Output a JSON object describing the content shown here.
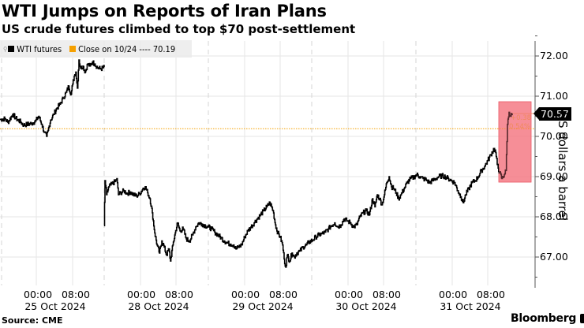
{
  "header": {
    "title": "WTI Jumps on Reports of Iran Plans",
    "subtitle": "US crude futures climbed to top $70 post-settlement"
  },
  "legend": {
    "items": [
      {
        "label": "WTI futures",
        "color": "#000000"
      },
      {
        "label": "Close on 10/24 ---- 70.19",
        "color": "#f5a000"
      }
    ]
  },
  "y_axis": {
    "title": "US dollars a barrel",
    "ticks": [
      "72.00",
      "71.00",
      "70.00",
      "69.00",
      "68.00",
      "67.00"
    ],
    "last_value": "70.57"
  },
  "x_axis": {
    "groups": [
      {
        "times": "00:00   08:00",
        "date": "25 Oct 2024"
      },
      {
        "times": "00:00   08:00",
        "date": "28 Oct 2024"
      },
      {
        "times": "00:00   08:00",
        "date": "29 Oct 2024"
      },
      {
        "times": "00:00   08:00",
        "date": "30 Oct 2024"
      },
      {
        "times": "00:00   08:00",
        "date": "31 Oct 2024"
      }
    ]
  },
  "annotation": {
    "change": "+0.38",
    "pct": "0.54%",
    "box_color": "#f4747f"
  },
  "footer": {
    "source": "Source: CME",
    "brand": "Bloomberg"
  },
  "colors": {
    "series": "#000000",
    "reference": "#f5a000",
    "highlight": "#f4747f",
    "grid": "#e6e6e6"
  },
  "chart_data": {
    "type": "line",
    "title": "WTI Jumps on Reports of Iran Plans",
    "subtitle": "US crude futures climbed to top $70 post-settlement",
    "xlabel": "",
    "ylabel": "US dollars a barrel",
    "ylim": [
      66.2,
      72.3
    ],
    "grid": true,
    "legend_position": "top-left",
    "reference_line": {
      "label": "Close on 10/24",
      "value": 70.19
    },
    "last_value": 70.57,
    "change": 0.38,
    "change_pct": 0.54,
    "x_tick_labels": [
      "00:00",
      "08:00",
      "25 Oct 2024",
      "28 Oct 2024",
      "29 Oct 2024",
      "30 Oct 2024",
      "31 Oct 2024"
    ],
    "series": [
      {
        "name": "WTI futures",
        "segments": [
          [
            [
              0,
              70.42
            ],
            [
              6,
              70.44
            ],
            [
              10,
              70.35
            ],
            [
              16,
              70.55
            ],
            [
              20,
              70.45
            ],
            [
              26,
              70.36
            ],
            [
              30,
              70.28
            ],
            [
              34,
              70.3
            ],
            [
              40,
              70.32
            ],
            [
              45,
              70.38
            ],
            [
              49,
              70.5
            ],
            [
              53,
              70.3
            ],
            [
              56,
              70.1
            ],
            [
              59,
              70.0
            ],
            [
              61,
              70.15
            ],
            [
              64,
              70.4
            ],
            [
              68,
              70.55
            ],
            [
              72,
              70.7
            ],
            [
              76,
              70.8
            ],
            [
              80,
              70.95
            ],
            [
              84,
              71.1
            ],
            [
              87,
              71.25
            ],
            [
              90,
              71.05
            ],
            [
              92,
              71.3
            ],
            [
              94,
              71.5
            ],
            [
              96,
              71.6
            ],
            [
              98,
              71.2
            ],
            [
              100,
              71.9
            ],
            [
              102,
              71.7
            ],
            [
              105,
              71.75
            ],
            [
              108,
              71.6
            ],
            [
              111,
              71.8
            ],
            [
              114,
              71.75
            ],
            [
              117,
              71.85
            ],
            [
              120,
              71.8
            ],
            [
              124,
              71.7
            ],
            [
              128,
              71.68
            ],
            [
              132,
              71.72
            ]
          ],
          [
            [
              132,
              67.78
            ],
            [
              133,
              68.9
            ],
            [
              135,
              68.55
            ],
            [
              138,
              68.75
            ],
            [
              142,
              68.82
            ],
            [
              146,
              68.88
            ],
            [
              148,
              68.95
            ],
            [
              150,
              68.55
            ],
            [
              153,
              68.6
            ],
            [
              157,
              68.65
            ],
            [
              161,
              68.58
            ],
            [
              165,
              68.62
            ],
            [
              169,
              68.55
            ],
            [
              173,
              68.52
            ],
            [
              177,
              68.58
            ],
            [
              181,
              68.7
            ],
            [
              184,
              68.75
            ],
            [
              187,
              68.6
            ],
            [
              190,
              68.45
            ],
            [
              193,
              68.1
            ],
            [
              196,
              67.6
            ],
            [
              199,
              67.3
            ],
            [
              202,
              67.1
            ],
            [
              205,
              67.4
            ],
            [
              208,
              67.25
            ],
            [
              211,
              67.05
            ],
            [
              214,
              67.2
            ],
            [
              216,
              66.9
            ],
            [
              219,
              67.3
            ],
            [
              222,
              67.6
            ],
            [
              225,
              67.85
            ],
            [
              228,
              67.65
            ],
            [
              232,
              67.7
            ],
            [
              236,
              67.45
            ],
            [
              240,
              67.4
            ],
            [
              244,
              67.55
            ],
            [
              248,
              67.75
            ],
            [
              252,
              67.85
            ],
            [
              256,
              67.82
            ],
            [
              260,
              67.78
            ],
            [
              264,
              67.75
            ],
            [
              268,
              67.7
            ],
            [
              272,
              67.62
            ],
            [
              276,
              67.55
            ],
            [
              280,
              67.48
            ],
            [
              284,
              67.4
            ],
            [
              288,
              67.35
            ],
            [
              292,
              67.32
            ],
            [
              296,
              67.3
            ],
            [
              299,
              67.2
            ],
            [
              302,
              67.25
            ],
            [
              306,
              67.3
            ],
            [
              310,
              67.5
            ],
            [
              314,
              67.65
            ],
            [
              318,
              67.75
            ],
            [
              322,
              67.85
            ],
            [
              326,
              67.95
            ],
            [
              330,
              68.05
            ],
            [
              334,
              68.15
            ],
            [
              338,
              68.25
            ],
            [
              342,
              68.35
            ],
            [
              346,
              68.15
            ],
            [
              349,
              67.8
            ],
            [
              352,
              67.6
            ],
            [
              355,
              67.5
            ],
            [
              358,
              67.3
            ],
            [
              360,
              66.95
            ],
            [
              362,
              66.75
            ],
            [
              364,
              67.05
            ],
            [
              367,
              66.9
            ],
            [
              370,
              67.1
            ],
            [
              373,
              67.0
            ],
            [
              376,
              67.1
            ],
            [
              380,
              67.15
            ],
            [
              384,
              67.25
            ],
            [
              388,
              67.3
            ],
            [
              392,
              67.38
            ],
            [
              396,
              67.42
            ],
            [
              400,
              67.5
            ],
            [
              404,
              67.55
            ],
            [
              408,
              67.58
            ],
            [
              412,
              67.62
            ],
            [
              416,
              67.7
            ],
            [
              420,
              67.78
            ],
            [
              424,
              67.85
            ],
            [
              428,
              67.75
            ],
            [
              432,
              67.8
            ],
            [
              436,
              67.95
            ],
            [
              440,
              67.9
            ],
            [
              444,
              67.85
            ],
            [
              448,
              67.75
            ],
            [
              452,
              67.8
            ],
            [
              456,
              68.0
            ],
            [
              460,
              68.1
            ],
            [
              464,
              68.15
            ],
            [
              468,
              68.05
            ],
            [
              472,
              68.45
            ],
            [
              475,
              68.25
            ],
            [
              478,
              68.55
            ],
            [
              481,
              68.45
            ],
            [
              484,
              68.3
            ],
            [
              487,
              68.55
            ],
            [
              490,
              68.85
            ],
            [
              493,
              69.0
            ],
            [
              496,
              68.75
            ],
            [
              499,
              68.7
            ],
            [
              502,
              68.6
            ],
            [
              505,
              68.45
            ],
            [
              508,
              68.55
            ],
            [
              512,
              68.7
            ],
            [
              516,
              68.85
            ],
            [
              520,
              68.95
            ],
            [
              524,
              68.98
            ],
            [
              528,
              69.05
            ],
            [
              532,
              69.0
            ],
            [
              536,
              68.95
            ],
            [
              540,
              68.92
            ],
            [
              544,
              68.85
            ],
            [
              548,
              68.9
            ],
            [
              552,
              68.95
            ],
            [
              556,
              69.0
            ],
            [
              560,
              69.02
            ],
            [
              564,
              69.0
            ],
            [
              568,
              68.95
            ],
            [
              572,
              68.9
            ],
            [
              576,
              68.85
            ],
            [
              580,
              68.65
            ],
            [
              584,
              68.5
            ],
            [
              587,
              68.35
            ],
            [
              590,
              68.55
            ],
            [
              594,
              68.7
            ],
            [
              598,
              68.85
            ],
            [
              602,
              68.9
            ],
            [
              606,
              69.0
            ],
            [
              610,
              69.15
            ],
            [
              614,
              69.25
            ],
            [
              618,
              69.4
            ],
            [
              622,
              69.55
            ],
            [
              626,
              69.7
            ],
            [
              628,
              69.6
            ],
            [
              630,
              69.3
            ],
            [
              633,
              69.1
            ],
            [
              636,
              68.95
            ],
            [
              639,
              69.05
            ],
            [
              641,
              69.15
            ],
            [
              643,
              70.3
            ],
            [
              645,
              70.6
            ],
            [
              647,
              70.5
            ],
            [
              649,
              70.57
            ]
          ]
        ]
      }
    ]
  }
}
